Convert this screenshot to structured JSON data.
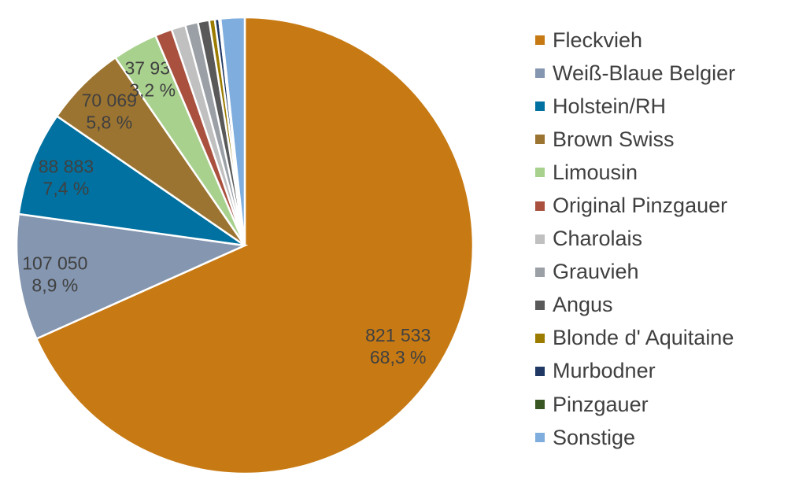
{
  "chart_data": {
    "type": "pie",
    "title": "",
    "start": "12 o'clock, clockwise",
    "legend_position": "right",
    "slices": [
      {
        "name": "Fleckvieh",
        "value": 821533,
        "percent": 68.3,
        "value_label": "821 533",
        "percent_label": "68,3 %",
        "color": "#C77A14"
      },
      {
        "name": "Weiß-Blaue Belgier",
        "value": 107050,
        "percent": 8.9,
        "value_label": "107 050",
        "percent_label": "8,9 %",
        "color": "#8496B0"
      },
      {
        "name": "Holstein/RH",
        "value": 88883,
        "percent": 7.4,
        "value_label": "88 883",
        "percent_label": "7,4 %",
        "color": "#0071A0"
      },
      {
        "name": "Brown Swiss",
        "value": 70069,
        "percent": 5.8,
        "value_label": "70 069",
        "percent_label": "5,8 %",
        "color": "#9C7431"
      },
      {
        "name": "Limousin",
        "value": 37937,
        "percent": 3.2,
        "value_label": "37 937",
        "percent_label": "3,2 %",
        "color": "#A9D18E"
      },
      {
        "name": "Original Pinzgauer",
        "percent": 1.2,
        "color": "#A9503E"
      },
      {
        "name": "Charolais",
        "percent": 1.0,
        "color": "#C0C0C0"
      },
      {
        "name": "Grauvieh",
        "percent": 0.9,
        "color": "#9AA0A6"
      },
      {
        "name": "Angus",
        "percent": 0.8,
        "color": "#595959"
      },
      {
        "name": "Blonde d' Aquitaine",
        "percent": 0.4,
        "color": "#9C7C00"
      },
      {
        "name": "Murbodner",
        "percent": 0.3,
        "color": "#1F3864"
      },
      {
        "name": "Pinzgauer",
        "percent": 0.1,
        "color": "#385723"
      },
      {
        "name": "Sonstige",
        "percent": 1.7,
        "color": "#7EADDE"
      }
    ]
  }
}
